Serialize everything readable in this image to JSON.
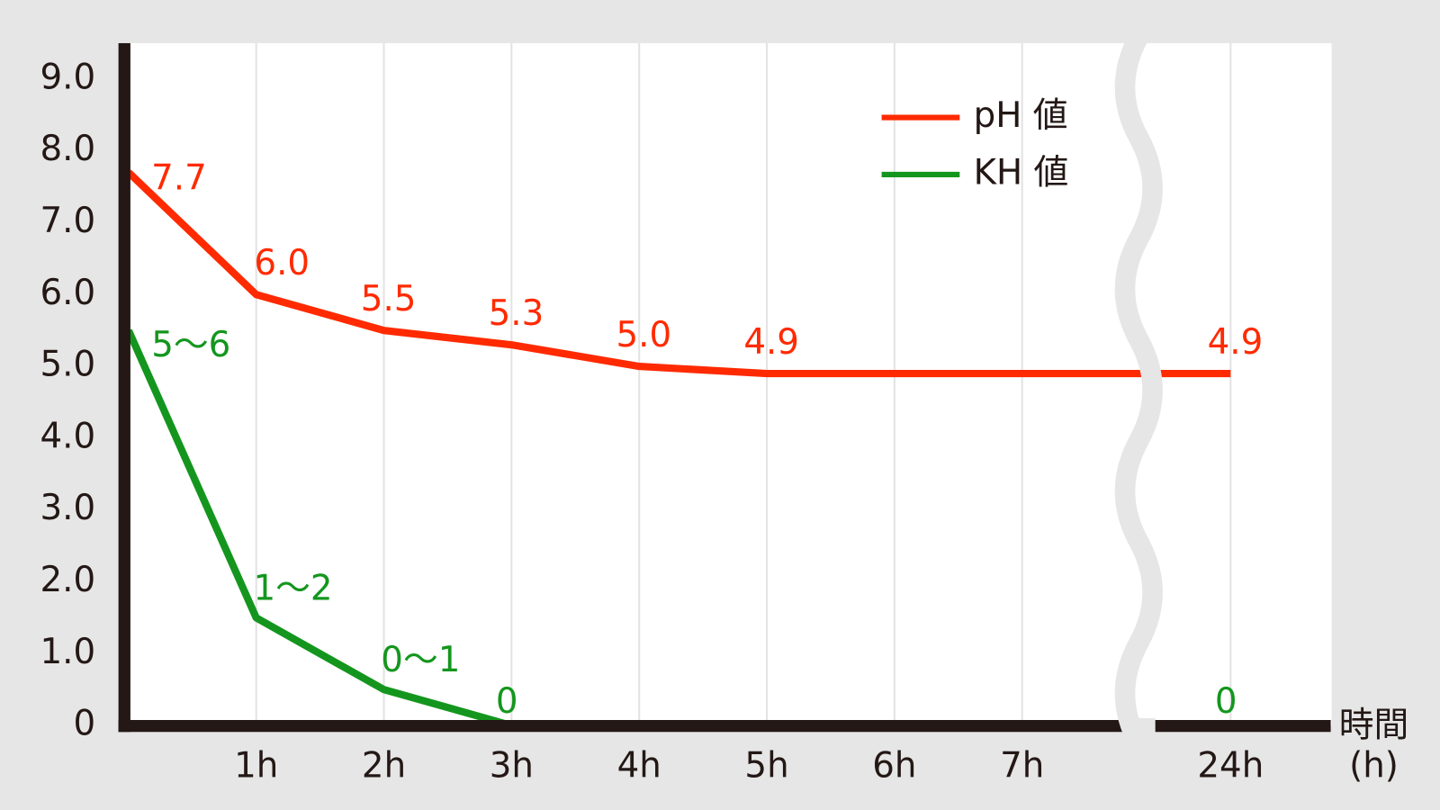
{
  "chart_data": {
    "type": "line",
    "categories": [
      null,
      "1h",
      "2h",
      "3h",
      "4h",
      "5h",
      "6h",
      "7h",
      "24h"
    ],
    "series": [
      {
        "name": "pH 値",
        "color": "#ff2a00",
        "values": [
          7.7,
          6.0,
          5.5,
          5.3,
          5.0,
          4.9,
          4.9,
          4.9,
          4.9
        ],
        "value_labels": [
          "7.7",
          "6.0",
          "5.5",
          "5.3",
          "5.0",
          "4.9",
          null,
          null,
          "4.9"
        ]
      },
      {
        "name": "KH 値",
        "color": "#14961e",
        "values": [
          5.5,
          1.5,
          0.5,
          0,
          0,
          0,
          0,
          0,
          0
        ],
        "value_labels": [
          "5〜6",
          "1〜2",
          "0〜1",
          "0",
          null,
          null,
          null,
          null,
          "0"
        ]
      }
    ],
    "x_label": "時間",
    "x_unit": "(h)",
    "ylim": [
      0,
      9.5
    ],
    "yticks": [
      0,
      {
        "value": 1,
        "label": "1.0"
      },
      {
        "value": 2,
        "label": "2.0"
      },
      {
        "value": 3,
        "label": "3.0"
      },
      {
        "value": 4,
        "label": "4.0"
      },
      {
        "value": 5,
        "label": "5.0"
      },
      {
        "value": 6,
        "label": "6.0"
      },
      {
        "value": 7,
        "label": "7.0"
      },
      {
        "value": 8,
        "label": "8.0"
      },
      {
        "value": 9,
        "label": "9.0"
      }
    ],
    "grid": true,
    "axis_break": true,
    "legend": "top-right"
  }
}
